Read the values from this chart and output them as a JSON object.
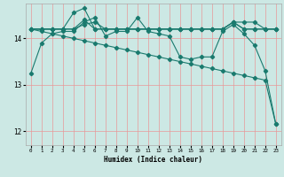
{
  "xlabel": "Humidex (Indice chaleur)",
  "bg_color": "#cce8e4",
  "grid_color": "#e89898",
  "line_color": "#1a7a6e",
  "xlim": [
    -0.5,
    23.5
  ],
  "ylim": [
    11.7,
    14.75
  ],
  "yticks": [
    12,
    13,
    14
  ],
  "xticks": [
    0,
    1,
    2,
    3,
    4,
    5,
    6,
    7,
    8,
    9,
    10,
    11,
    12,
    13,
    14,
    15,
    16,
    17,
    18,
    19,
    20,
    21,
    22,
    23
  ],
  "lines": [
    [
      13.25,
      13.9,
      14.1,
      14.15,
      14.15,
      14.35,
      14.45,
      14.05,
      14.15,
      14.15,
      14.45,
      14.15,
      14.1,
      14.05,
      13.6,
      13.55,
      13.6,
      13.6,
      14.15,
      14.3,
      14.1,
      13.85,
      13.3,
      12.15
    ],
    [
      14.2,
      14.2,
      14.2,
      14.2,
      14.2,
      14.4,
      14.2,
      14.2,
      14.2,
      14.2,
      14.2,
      14.2,
      14.2,
      14.2,
      14.2,
      14.2,
      14.2,
      14.2,
      14.2,
      14.35,
      14.2,
      14.2,
      14.2,
      14.2
    ],
    [
      14.2,
      14.2,
      14.2,
      14.2,
      14.55,
      14.65,
      14.2,
      14.2,
      14.2,
      14.2,
      14.2,
      14.2,
      14.2,
      14.2,
      14.2,
      14.2,
      14.2,
      14.2,
      14.2,
      14.35,
      14.2,
      14.2,
      14.2,
      14.2
    ],
    [
      14.2,
      14.2,
      14.2,
      14.2,
      14.2,
      14.3,
      14.35,
      14.2,
      14.2,
      14.2,
      14.2,
      14.2,
      14.2,
      14.2,
      14.2,
      14.2,
      14.2,
      14.2,
      14.2,
      14.35,
      14.35,
      14.35,
      14.2,
      14.2
    ],
    [
      14.2,
      14.15,
      14.1,
      14.05,
      14.0,
      13.95,
      13.9,
      13.85,
      13.8,
      13.75,
      13.7,
      13.65,
      13.6,
      13.55,
      13.5,
      13.45,
      13.4,
      13.35,
      13.3,
      13.25,
      13.2,
      13.15,
      13.1,
      12.15
    ]
  ]
}
